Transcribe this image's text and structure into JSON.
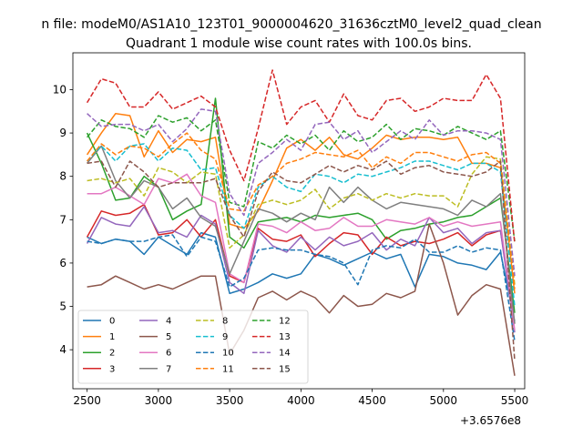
{
  "figure": {
    "suptitle": "n file: modeM0/AS1A10_123T01_9000004620_31636cztM0_level2_quad_clean"
  },
  "chart_data": {
    "type": "line",
    "title": "Quadrant 1 module wise count rates with 100.0s bins.",
    "xlabel": "",
    "ylabel": "",
    "x_offset_label": "+3.6576e8",
    "xlim": [
      2400,
      5570
    ],
    "ylim": [
      3.1,
      10.85
    ],
    "xticks": [
      2500,
      3000,
      3500,
      4000,
      4500,
      5000,
      5500
    ],
    "yticks": [
      4,
      5,
      6,
      7,
      8,
      9,
      10
    ],
    "grid": false,
    "legend": {
      "placement": "lower-left",
      "columns": 4
    },
    "x": [
      2500,
      2600,
      2700,
      2800,
      2900,
      3000,
      3100,
      3200,
      3300,
      3400,
      3500,
      3600,
      3700,
      3800,
      3900,
      4000,
      4100,
      4200,
      4300,
      4400,
      4500,
      4600,
      4700,
      4800,
      4900,
      5000,
      5100,
      5200,
      5300,
      5400,
      5500
    ],
    "series": [
      {
        "name": "0",
        "color": "#1f77b4",
        "dash": "solid",
        "values": [
          6.6,
          6.45,
          6.55,
          6.5,
          6.2,
          6.6,
          6.4,
          6.2,
          6.7,
          6.6,
          5.3,
          5.4,
          5.55,
          5.75,
          5.65,
          5.75,
          6.2,
          6.1,
          5.95,
          6.1,
          6.25,
          6.1,
          6.2,
          5.45,
          6.2,
          6.15,
          6.0,
          5.95,
          5.85,
          6.25,
          4.65
        ]
      },
      {
        "name": "1",
        "color": "#ff7f0e",
        "dash": "solid",
        "values": [
          8.5,
          9.0,
          9.45,
          9.4,
          8.45,
          9.05,
          8.55,
          8.85,
          8.8,
          8.9,
          6.9,
          6.8,
          7.2,
          7.9,
          8.65,
          8.85,
          8.6,
          8.9,
          8.5,
          8.4,
          8.65,
          8.95,
          8.85,
          8.9,
          8.9,
          8.85,
          8.9,
          8.3,
          8.3,
          8.2,
          5.3
        ]
      },
      {
        "name": "2",
        "color": "#2ca02c",
        "dash": "solid",
        "values": [
          9.0,
          8.3,
          7.45,
          7.5,
          8.0,
          7.75,
          7.0,
          7.2,
          7.35,
          9.8,
          6.6,
          6.35,
          6.95,
          7.0,
          7.05,
          6.95,
          7.1,
          7.05,
          7.1,
          7.15,
          7.0,
          6.55,
          6.75,
          6.8,
          6.9,
          6.95,
          7.05,
          7.1,
          7.3,
          7.5,
          4.85
        ]
      },
      {
        "name": "3",
        "color": "#d62728",
        "dash": "solid",
        "values": [
          6.6,
          7.2,
          7.1,
          7.15,
          7.35,
          6.65,
          6.7,
          7.0,
          6.6,
          7.0,
          5.7,
          5.55,
          6.8,
          6.55,
          6.5,
          6.65,
          6.15,
          6.45,
          6.7,
          6.65,
          6.2,
          6.6,
          6.4,
          6.5,
          6.45,
          6.55,
          6.7,
          6.4,
          6.65,
          6.75,
          4.6
        ]
      },
      {
        "name": "4",
        "color": "#9467bd",
        "dash": "solid",
        "values": [
          6.45,
          7.05,
          6.9,
          6.85,
          7.3,
          6.7,
          6.75,
          6.6,
          7.1,
          6.9,
          5.55,
          5.3,
          6.75,
          6.4,
          6.25,
          6.6,
          6.3,
          6.6,
          6.4,
          6.5,
          6.7,
          6.3,
          6.55,
          6.4,
          7.05,
          6.7,
          6.8,
          6.45,
          6.7,
          6.75,
          4.4
        ]
      },
      {
        "name": "5",
        "color": "#8c564b",
        "dash": "solid",
        "values": [
          5.45,
          5.5,
          5.7,
          5.55,
          5.4,
          5.5,
          5.4,
          5.55,
          5.7,
          5.7,
          3.9,
          4.45,
          5.2,
          5.35,
          5.15,
          5.35,
          5.2,
          4.85,
          5.25,
          5.0,
          5.05,
          5.3,
          5.2,
          5.35,
          6.9,
          6.0,
          4.8,
          5.25,
          5.5,
          5.4,
          3.4
        ]
      },
      {
        "name": "6",
        "color": "#e377c2",
        "dash": "solid",
        "values": [
          7.6,
          7.6,
          7.75,
          7.55,
          7.35,
          7.95,
          7.85,
          8.05,
          7.55,
          7.4,
          5.75,
          5.55,
          6.9,
          6.85,
          6.7,
          6.95,
          6.75,
          6.8,
          7.05,
          6.85,
          6.85,
          7.0,
          6.95,
          6.9,
          7.05,
          6.85,
          6.95,
          6.85,
          6.9,
          6.95,
          4.45
        ]
      },
      {
        "name": "7",
        "color": "#7f7f7f",
        "dash": "solid",
        "values": [
          8.3,
          8.7,
          7.9,
          7.5,
          7.9,
          7.75,
          7.25,
          7.5,
          7.05,
          6.85,
          5.75,
          6.5,
          7.25,
          7.15,
          6.95,
          7.15,
          7.0,
          7.75,
          7.4,
          7.75,
          7.45,
          7.25,
          7.4,
          7.35,
          7.3,
          7.25,
          7.1,
          7.45,
          7.3,
          7.6,
          4.6
        ]
      },
      {
        "name": "8",
        "color": "#bcbd22",
        "dash": "dashed",
        "values": [
          7.9,
          7.95,
          7.85,
          7.95,
          7.55,
          8.2,
          8.1,
          7.85,
          8.1,
          8.05,
          6.35,
          6.65,
          7.35,
          7.45,
          7.35,
          7.45,
          7.7,
          7.25,
          7.5,
          7.6,
          7.45,
          7.6,
          7.5,
          7.6,
          7.55,
          7.55,
          7.3,
          8.05,
          8.45,
          8.4,
          5.5
        ]
      },
      {
        "name": "9",
        "color": "#17becf",
        "dash": "dashed",
        "values": [
          8.35,
          8.7,
          8.35,
          8.7,
          8.75,
          8.35,
          8.65,
          8.6,
          8.15,
          8.2,
          7.1,
          6.8,
          7.75,
          8.0,
          7.75,
          7.65,
          8.05,
          8.0,
          7.85,
          8.05,
          8.0,
          8.1,
          8.2,
          8.35,
          8.35,
          8.25,
          8.15,
          8.3,
          8.3,
          8.1,
          5.0
        ]
      },
      {
        "name": "10",
        "color": "#1f77b4",
        "dash": "dashed",
        "values": [
          6.5,
          6.45,
          6.55,
          6.5,
          6.5,
          6.6,
          6.65,
          6.15,
          6.6,
          6.5,
          5.45,
          5.65,
          6.3,
          6.35,
          6.3,
          6.3,
          6.2,
          6.15,
          6.0,
          5.5,
          6.3,
          6.4,
          6.35,
          6.55,
          6.25,
          6.25,
          6.4,
          6.25,
          6.35,
          6.3,
          4.2
        ]
      },
      {
        "name": "11",
        "color": "#ff7f0e",
        "dash": "dashed",
        "values": [
          8.35,
          8.75,
          8.5,
          8.7,
          8.65,
          8.45,
          8.75,
          9.0,
          8.6,
          8.4,
          7.25,
          7.2,
          7.8,
          8.0,
          8.3,
          8.4,
          8.55,
          8.5,
          8.45,
          8.6,
          8.2,
          8.45,
          8.3,
          8.55,
          8.55,
          8.45,
          8.35,
          8.5,
          8.55,
          8.3,
          5.4
        ]
      },
      {
        "name": "12",
        "color": "#2ca02c",
        "dash": "dashed",
        "values": [
          8.9,
          9.3,
          9.15,
          9.1,
          8.9,
          9.4,
          9.25,
          9.35,
          9.05,
          9.3,
          7.4,
          7.3,
          8.8,
          8.65,
          8.95,
          8.75,
          8.95,
          8.6,
          9.05,
          8.8,
          8.9,
          9.2,
          8.85,
          9.1,
          9.05,
          8.95,
          9.15,
          9.0,
          8.85,
          9.05,
          6.5
        ]
      },
      {
        "name": "13",
        "color": "#d62728",
        "dash": "dashed",
        "values": [
          9.7,
          10.25,
          10.15,
          9.6,
          9.6,
          9.95,
          9.55,
          9.7,
          9.85,
          9.6,
          8.6,
          7.9,
          9.1,
          10.45,
          9.2,
          9.6,
          9.75,
          9.25,
          9.9,
          9.4,
          9.3,
          9.75,
          9.8,
          9.5,
          9.6,
          9.8,
          9.75,
          9.75,
          10.35,
          9.8,
          6.45
        ]
      },
      {
        "name": "14",
        "color": "#9467bd",
        "dash": "dashed",
        "values": [
          9.45,
          9.15,
          9.2,
          9.2,
          9.05,
          9.2,
          8.8,
          9.1,
          9.55,
          9.5,
          7.6,
          7.1,
          8.3,
          8.55,
          8.85,
          8.6,
          9.2,
          9.25,
          8.85,
          9.05,
          8.55,
          8.8,
          9.05,
          8.85,
          9.3,
          8.95,
          9.05,
          9.05,
          9.0,
          8.85,
          5.7
        ]
      },
      {
        "name": "15",
        "color": "#8c564b",
        "dash": "dashed",
        "values": [
          8.3,
          8.35,
          7.75,
          8.35,
          8.1,
          7.75,
          7.85,
          7.85,
          7.85,
          7.95,
          7.1,
          6.6,
          7.65,
          8.1,
          7.9,
          7.85,
          8.05,
          8.25,
          8.1,
          8.25,
          8.15,
          8.35,
          8.05,
          8.2,
          8.25,
          8.1,
          8.05,
          8.0,
          8.1,
          8.35,
          3.75
        ]
      }
    ]
  }
}
